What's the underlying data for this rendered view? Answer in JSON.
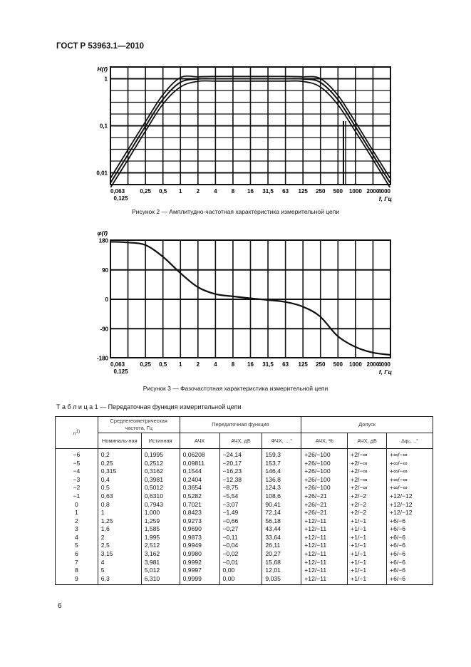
{
  "header": {
    "title": "ГОСТ Р 53963.1—2010"
  },
  "figure2": {
    "caption": "Рисунок 2 — Амплитудно-частотная характеристика измерительной цепи"
  },
  "figure3": {
    "caption": "Рисунок 3 — Фазочастотная характеристика измерительной цепи"
  },
  "chart_data": [
    {
      "type": "line",
      "title": "",
      "ylabel": "H(f)",
      "xlabel": "f, Гц",
      "xscale": "log2",
      "yscale": "log10",
      "x_tick_labels": [
        "0,063",
        "0,125",
        "0,25",
        "0,5",
        "1",
        "2",
        "4",
        "8",
        "16",
        "31,5",
        "63",
        "125",
        "250",
        "500",
        "1000",
        "2000",
        "4000"
      ],
      "y_tick_labels": [
        "1",
        "0,1",
        "0,01"
      ],
      "y_ticks": [
        1,
        0.1,
        0.01
      ],
      "xlim": [
        0.063,
        4000
      ],
      "ylim": [
        0.0056,
        1.7
      ],
      "grid": true,
      "x": [
        0.063,
        0.125,
        0.25,
        0.5,
        1,
        2,
        4,
        8,
        16,
        31.5,
        63,
        125,
        250,
        500,
        1000,
        2000,
        4000
      ],
      "series": [
        {
          "values": [
            0.0078,
            0.031,
            0.122,
            0.46,
            1.06,
            1.1,
            1.12,
            1.12,
            1.12,
            1.12,
            1.12,
            1.1,
            1.02,
            0.46,
            0.125,
            0.031,
            0.0078
          ]
        },
        {
          "values": [
            0.0062,
            0.0244,
            0.0972,
            0.364,
            0.842,
            0.9875,
            0.9992,
            1,
            1,
            1,
            1,
            0.988,
            0.848,
            0.371,
            0.0995,
            0.025,
            0.0062
          ]
        },
        {
          "values": [
            0.0049,
            0.019,
            0.077,
            0.29,
            0.67,
            0.88,
            0.89,
            0.89,
            0.89,
            0.89,
            0.89,
            0.88,
            0.68,
            0.29,
            0.079,
            0.02,
            0.0049
          ]
        }
      ]
    },
    {
      "type": "line",
      "title": "",
      "ylabel": "φ(f)",
      "xlabel": "f, Гц",
      "xscale": "log2",
      "x_tick_labels": [
        "0,063",
        "0,125",
        "0,25",
        "0,5",
        "1",
        "2",
        "4",
        "8",
        "16",
        "31,5",
        "63",
        "125",
        "250",
        "500",
        "1000",
        "2000",
        "4000"
      ],
      "y_tick_labels": [
        "180",
        "90",
        "0",
        "-90",
        "-180"
      ],
      "y_ticks": [
        180,
        90,
        0,
        -90,
        -180
      ],
      "xlim": [
        0.063,
        4000
      ],
      "ylim": [
        -180,
        180
      ],
      "grid": true,
      "x": [
        0.063,
        0.125,
        0.25,
        0.5,
        1,
        2,
        4,
        8,
        16,
        31.5,
        63,
        125,
        250,
        500,
        1000,
        2000,
        4000
      ],
      "series": [
        {
          "values": [
            176,
            174,
            166,
            130,
            80,
            37,
            16,
            9,
            3,
            -2,
            -8,
            -22,
            -52,
            -112,
            -145,
            -163,
            -170
          ]
        }
      ]
    }
  ],
  "table": {
    "caption": "Т а б л и ц а  1 — Передаточная функция измерительной цепи",
    "headers": {
      "n": "n",
      "n_sup": "1)",
      "freq_group": "Среднегеометрическая частота, Гц",
      "transfer_group": "Передаточная функция",
      "tolerance_group": "Допуск",
      "nominal": "Номиналь-ная",
      "true": "Истинная",
      "afc": "АЧХ",
      "afc_db": "АЧХ, дБ",
      "pfc": "ФЧХ, …°",
      "tol_afc_pct": "АЧХ, %",
      "tol_afc_db": "АЧХ, дБ",
      "tol_phase": "Δφ₀, ..°"
    },
    "rows": [
      [
        "−6",
        "0,2",
        "0,1995",
        "0,06208",
        "−24,14",
        "159,3",
        "+26/−100",
        "+2/−∞",
        "+∞/−∞"
      ],
      [
        "−5",
        "0,25",
        "0,2512",
        "0,09811",
        "−20,17",
        "153,7",
        "+26/−100",
        "+2/−∞",
        "+∞/−∞"
      ],
      [
        "−4",
        "0,315",
        "0,3162",
        "0,1544",
        "−16,23",
        "146,4",
        "+26/−100",
        "+2/−∞",
        "+∞/−∞"
      ],
      [
        "−3",
        "0,4",
        "0,3981",
        "0,2404",
        "−12,38",
        "136,8",
        "+26/−100",
        "+2/−∞",
        "+∞/−∞"
      ],
      [
        "−2",
        "0,5",
        "0,5012",
        "0,3654",
        "−8,75",
        "124,3",
        "+26/−100",
        "+2/−∞",
        "+∞/−∞"
      ],
      [
        "−1",
        "0,63",
        "0,6310",
        "0,5282",
        "−5,54",
        "108,6",
        "+26/−21",
        "+2/−2",
        "+12/−12"
      ],
      [
        "0",
        "0,8",
        "0,7943",
        "0,7021",
        "−3,07",
        "90,41",
        "+26/−21",
        "+2/−2",
        "+12/−12"
      ],
      [
        "1",
        "1",
        "1,000",
        "0,8423",
        "−1,49",
        "72,14",
        "+26/−21",
        "+2/−2",
        "+12/−12"
      ],
      [
        "2",
        "1,25",
        "1,259",
        "0,9273",
        "−0,66",
        "56,18",
        "+12/−11",
        "+1/−1",
        "+6/−6"
      ],
      [
        "3",
        "1,6",
        "1,585",
        "0,9690",
        "−0,27",
        "43,44",
        "+12/−11",
        "+1/−1",
        "+6/−6"
      ],
      [
        "4",
        "2",
        "1,995",
        "0,9873",
        "−0,11",
        "33,64",
        "+12/−11",
        "+1/−1",
        "+6/−6"
      ],
      [
        "5",
        "2,5",
        "2,512",
        "0,9949",
        "−0,04",
        "26,11",
        "+12/−11",
        "+1/−1",
        "+6/−6"
      ],
      [
        "6",
        "3,15",
        "3,162",
        "0,9980",
        "−0,02",
        "20,27",
        "+12/−11",
        "+1/−1",
        "+6/−6"
      ],
      [
        "7",
        "4",
        "3,981",
        "0,9992",
        "−0,01",
        "15,68",
        "+12/−11",
        "+1/−1",
        "+6/−6"
      ],
      [
        "8",
        "5",
        "5,012",
        "0,9997",
        "0,00",
        "12,01",
        "+12/−11",
        "+1/−1",
        "+6/−6"
      ],
      [
        "9",
        "6,3",
        "6,310",
        "0,9999",
        "0,00",
        "9,035",
        "+12/−11",
        "+1/−1",
        "+6/−6"
      ]
    ]
  },
  "page_number": "6"
}
